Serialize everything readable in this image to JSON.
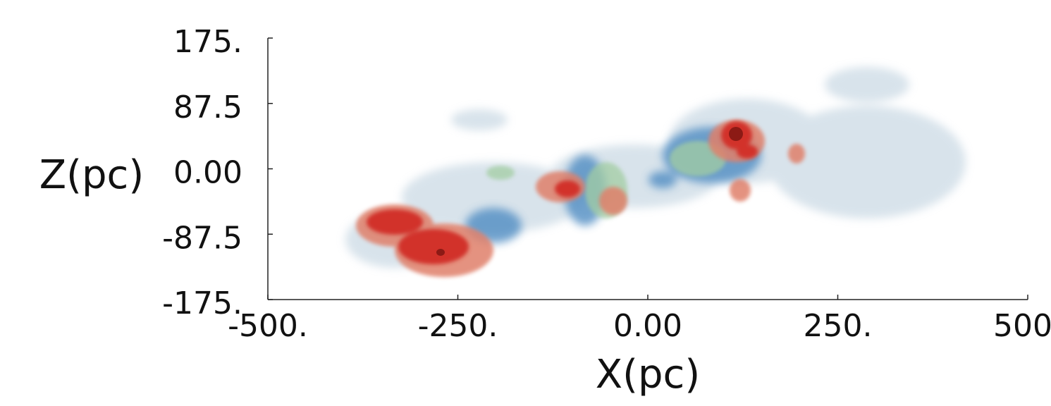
{
  "chart_data": {
    "type": "volume",
    "xlabel": "X(pc)",
    "ylabel": "Z(pc)",
    "xlim": [
      -500,
      500
    ],
    "ylim": [
      -175,
      175
    ],
    "xticks": [
      {
        "value": -500,
        "label": "-500."
      },
      {
        "value": -250,
        "label": "-250."
      },
      {
        "value": 0,
        "label": "0.00"
      },
      {
        "value": 250,
        "label": "250."
      },
      {
        "value": 500,
        "label": "500."
      }
    ],
    "yticks": [
      {
        "value": -175,
        "label": "-175."
      },
      -87.5,
      {
        "value": 0,
        "label": "0.00"
      },
      87.5,
      {
        "value": 175,
        "label": "175."
      }
    ]
  }
}
